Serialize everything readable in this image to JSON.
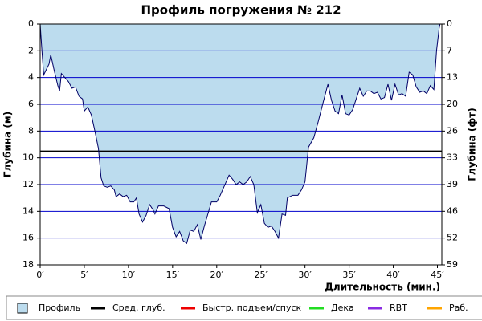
{
  "chart_data": {
    "type": "area",
    "title": "Профиль погружения № 212",
    "xlabel": "Длительность (мин.)",
    "ylabel": "Глубина (м)",
    "y2label": "Глубина (фт)",
    "inverted_y": true,
    "grid": true,
    "grid_color": "#0000cc",
    "xlim": [
      0,
      45.5
    ],
    "ylim": [
      0,
      18
    ],
    "y2lim": [
      0,
      59.06
    ],
    "xticks": [
      {
        "value": 0,
        "label": "0′"
      },
      {
        "value": 5,
        "label": "5′"
      },
      {
        "value": 10,
        "label": "10′"
      },
      {
        "value": 15,
        "label": "15′"
      },
      {
        "value": 20,
        "label": "20′"
      },
      {
        "value": 25,
        "label": "25′"
      },
      {
        "value": 30,
        "label": "30′"
      },
      {
        "value": 35,
        "label": "35′"
      },
      {
        "value": 40,
        "label": "40′"
      },
      {
        "value": 45,
        "label": "45′"
      }
    ],
    "yticks": [
      0,
      2,
      4,
      6,
      8,
      10,
      12,
      14,
      16,
      18
    ],
    "y2ticks": [
      0,
      {
        "value": 6.56,
        "label": "7"
      },
      {
        "value": 13.12,
        "label": "13"
      },
      {
        "value": 19.69,
        "label": "20"
      },
      {
        "value": 26.25,
        "label": "26"
      },
      {
        "value": 32.81,
        "label": "33"
      },
      {
        "value": 39.37,
        "label": "39"
      },
      {
        "value": 45.93,
        "label": "46"
      },
      {
        "value": 52.49,
        "label": "52"
      },
      {
        "value": 59.06,
        "label": "59"
      }
    ],
    "x": [
      0,
      0.2,
      0.4,
      1.0,
      1.2,
      1.6,
      2.0,
      2.2,
      2.4,
      2.8,
      3.2,
      3.6,
      4.0,
      4.4,
      4.8,
      5.0,
      5.4,
      5.8,
      6.2,
      6.6,
      6.9,
      7.2,
      7.6,
      8.0,
      8.4,
      8.6,
      9.0,
      9.4,
      9.8,
      10.2,
      10.6,
      10.9,
      11.2,
      11.6,
      12.0,
      12.4,
      12.8,
      13.0,
      13.4,
      14.0,
      14.6,
      15.0,
      15.4,
      15.8,
      16.2,
      16.6,
      17.0,
      17.4,
      17.8,
      18.2,
      18.6,
      19.0,
      19.4,
      20.0,
      20.4,
      20.8,
      21.2,
      21.4,
      21.8,
      22.2,
      22.6,
      23.0,
      23.4,
      23.8,
      24.2,
      24.6,
      25.0,
      25.4,
      25.8,
      26.2,
      26.6,
      27.0,
      27.4,
      27.8,
      28.0,
      28.6,
      29.2,
      29.6,
      30.0,
      30.4,
      31.0,
      31.5,
      32.0,
      32.6,
      33.0,
      33.4,
      33.8,
      34.2,
      34.6,
      35.0,
      35.4,
      35.8,
      36.2,
      36.6,
      37.0,
      37.4,
      37.8,
      38.2,
      38.6,
      39.0,
      39.4,
      39.8,
      40.2,
      40.6,
      41.0,
      41.4,
      41.8,
      42.2,
      42.6,
      43.0,
      43.4,
      43.8,
      44.2,
      44.6,
      44.9,
      45.2,
      45.3
    ],
    "series": [
      {
        "name": "Профиль",
        "color": "#bcdcee",
        "line_color": "#000066",
        "values": [
          0,
          2.0,
          3.8,
          3.0,
          2.3,
          3.5,
          4.6,
          5.0,
          3.7,
          4.0,
          4.3,
          4.8,
          4.7,
          5.4,
          5.6,
          6.5,
          6.2,
          6.8,
          8.0,
          9.3,
          11.5,
          12.1,
          12.2,
          12.1,
          12.4,
          12.9,
          12.7,
          12.9,
          12.8,
          13.3,
          13.3,
          13.0,
          14.2,
          14.8,
          14.3,
          13.5,
          13.9,
          14.2,
          13.6,
          13.6,
          13.8,
          15.2,
          15.9,
          15.5,
          16.2,
          16.4,
          15.4,
          15.5,
          15.0,
          16.1,
          15.1,
          14.2,
          13.3,
          13.3,
          12.8,
          12.2,
          11.6,
          11.3,
          11.6,
          12.0,
          11.8,
          12.0,
          11.8,
          11.4,
          12.0,
          14.1,
          13.5,
          14.9,
          15.2,
          15.1,
          15.5,
          16.0,
          14.2,
          14.3,
          13.0,
          12.8,
          12.8,
          12.4,
          11.8,
          9.2,
          8.5,
          7.3,
          6.0,
          4.5,
          5.7,
          6.5,
          6.7,
          5.3,
          6.7,
          6.8,
          6.4,
          5.6,
          4.8,
          5.4,
          5.0,
          5.0,
          5.2,
          5.1,
          5.6,
          5.5,
          4.5,
          5.7,
          4.5,
          5.3,
          5.2,
          5.4,
          3.6,
          3.8,
          4.7,
          5.1,
          5.0,
          5.2,
          4.6,
          4.9,
          2.0,
          0.3,
          0
        ]
      }
    ],
    "reference_lines": [
      {
        "name": "Сред. глуб.",
        "color": "#000000",
        "value": 9.5
      }
    ],
    "legend_items": [
      {
        "name": "Быстр. подъем/спуск",
        "color": "#ee0000"
      },
      {
        "name": "Дека",
        "color": "#22dd22"
      },
      {
        "name": "RBT",
        "color": "#8a2be2"
      },
      {
        "name": "Раб.",
        "color": "#ffa500"
      }
    ]
  }
}
